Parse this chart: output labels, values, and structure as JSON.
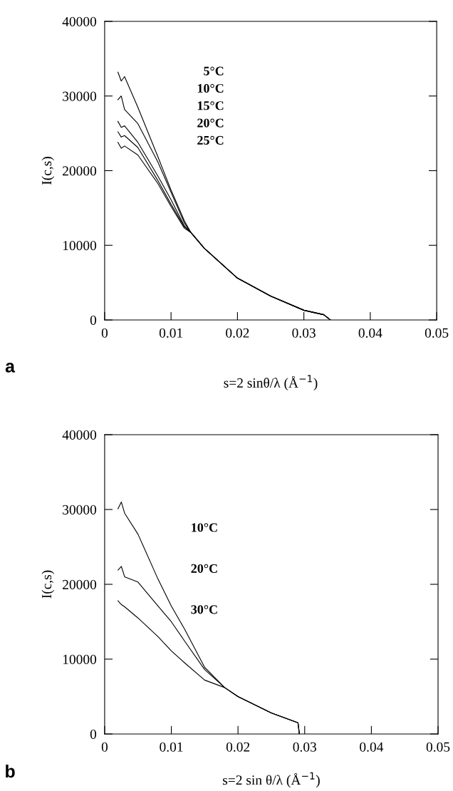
{
  "chart_data": [
    {
      "type": "line",
      "xlabel": "s=2 sinθ/λ (Å$^{−1}$)",
      "ylabel": "I(c,s)",
      "xlim": [
        0,
        0.05
      ],
      "ylim": [
        0,
        40000
      ],
      "xticks": [
        0,
        0.01,
        0.02,
        0.03,
        0.04,
        0.05
      ],
      "yticks": [
        0,
        10000,
        20000,
        30000,
        40000
      ],
      "grid": false,
      "legend": false,
      "annotations": [
        "a",
        "5°C",
        "10°C",
        "15°C",
        "20°C",
        "25°C"
      ],
      "series": [
        {
          "color": "#000000",
          "x": [
            0.002,
            0.0025,
            0.003,
            0.005,
            0.008,
            0.01,
            0.012,
            0.013,
            0.015,
            0.02,
            0.025,
            0.03,
            0.033,
            0.034
          ],
          "values": [
            33200,
            32000,
            32600,
            28500,
            21900,
            17400,
            13300,
            11700,
            9600,
            5600,
            3200,
            1300,
            700,
            0
          ]
        },
        {
          "color": "#000000",
          "x": [
            0.002,
            0.0025,
            0.003,
            0.005,
            0.008,
            0.01,
            0.012,
            0.013,
            0.015,
            0.02,
            0.025,
            0.03,
            0.033,
            0.034
          ],
          "values": [
            29500,
            30000,
            28200,
            26300,
            21200,
            17100,
            13000,
            11700,
            9600,
            5600,
            3200,
            1300,
            700,
            0
          ]
        },
        {
          "color": "#000000",
          "x": [
            0.002,
            0.0025,
            0.003,
            0.005,
            0.008,
            0.01,
            0.012,
            0.013,
            0.015,
            0.02,
            0.025,
            0.03,
            0.033,
            0.034
          ],
          "values": [
            26600,
            25800,
            26000,
            23800,
            19300,
            16100,
            12600,
            11700,
            9600,
            5600,
            3200,
            1300,
            700,
            0
          ]
        },
        {
          "color": "#000000",
          "x": [
            0.002,
            0.0025,
            0.003,
            0.005,
            0.008,
            0.01,
            0.012,
            0.013,
            0.015,
            0.02,
            0.025,
            0.03,
            0.033,
            0.034
          ],
          "values": [
            25200,
            24500,
            24700,
            23100,
            18700,
            15500,
            12500,
            11700,
            9600,
            5600,
            3200,
            1300,
            700,
            0
          ]
        },
        {
          "color": "#000000",
          "x": [
            0.002,
            0.0025,
            0.003,
            0.005,
            0.008,
            0.01,
            0.012,
            0.013,
            0.015,
            0.02,
            0.025,
            0.03,
            0.033,
            0.034
          ],
          "values": [
            23800,
            23000,
            23300,
            22100,
            18300,
            15200,
            12300,
            11700,
            9600,
            5600,
            3200,
            1300,
            700,
            0
          ]
        }
      ]
    },
    {
      "type": "line",
      "xlabel": "s=2 sin θ/λ (Å$^{−1}$)",
      "ylabel": "I(c,s)",
      "xlim": [
        0,
        0.05
      ],
      "ylim": [
        0,
        40000
      ],
      "xticks": [
        0,
        0.01,
        0.02,
        0.03,
        0.04,
        0.05
      ],
      "yticks": [
        0,
        10000,
        20000,
        30000,
        40000
      ],
      "grid": false,
      "legend": false,
      "annotations": [
        "b",
        "10°C",
        "20°C",
        "30°C"
      ],
      "series": [
        {
          "color": "#000000",
          "x": [
            0.002,
            0.0025,
            0.003,
            0.005,
            0.008,
            0.01,
            0.012,
            0.015,
            0.018,
            0.02,
            0.025,
            0.029,
            0.0292
          ],
          "values": [
            30100,
            31000,
            29500,
            26700,
            20700,
            17100,
            14000,
            8900,
            6200,
            5000,
            2800,
            1500,
            0
          ]
        },
        {
          "color": "#000000",
          "x": [
            0.002,
            0.0025,
            0.003,
            0.005,
            0.008,
            0.01,
            0.012,
            0.015,
            0.018,
            0.02,
            0.025,
            0.029,
            0.0292
          ],
          "values": [
            21900,
            22400,
            21000,
            20300,
            17100,
            15000,
            12400,
            8600,
            6200,
            5000,
            2800,
            1500,
            0
          ]
        },
        {
          "color": "#000000",
          "x": [
            0.002,
            0.0025,
            0.003,
            0.005,
            0.008,
            0.01,
            0.012,
            0.015,
            0.018,
            0.02,
            0.025,
            0.029,
            0.0292
          ],
          "values": [
            17800,
            17300,
            17000,
            15500,
            13000,
            11100,
            9500,
            7200,
            6200,
            5000,
            2800,
            1500,
            0
          ]
        }
      ]
    }
  ]
}
